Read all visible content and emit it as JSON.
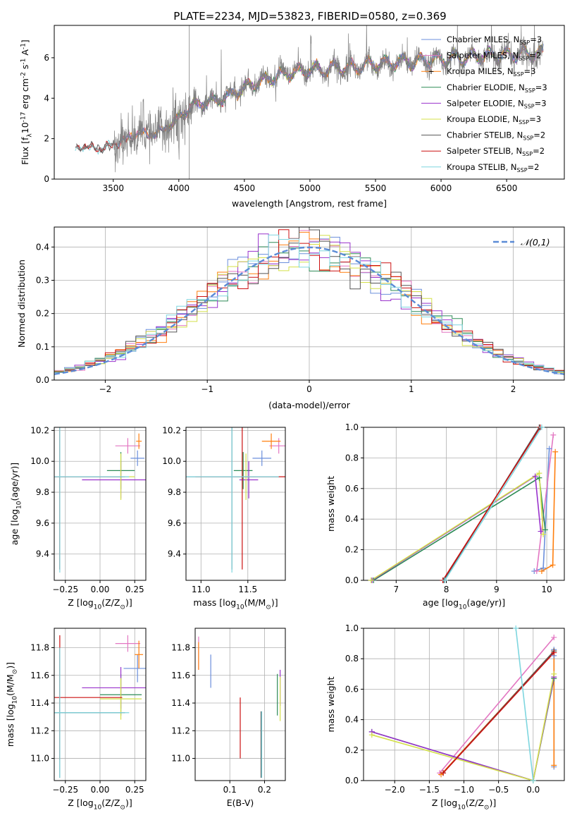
{
  "figure": {
    "title": "PLATE=2234, MJD=53823, FIBERID=0580, z=0.369"
  },
  "colors": {
    "Chabrier MILES": "#6b8fdc",
    "Salpeter MILES": "#e377c2",
    "Kroupa MILES": "#ff7f0e",
    "Chabrier ELODIE": "#2e8b57",
    "Salpeter ELODIE": "#9932cc",
    "Kroupa ELODIE": "#d4e04a",
    "Chabrier STELIB": "#555555",
    "Salpeter STELIB": "#cc1111",
    "Kroupa STELIB": "#7ed6df",
    "data": "#808080",
    "normal": "#5b8bd6"
  },
  "chart_data": [
    {
      "id": "spectrum",
      "type": "line",
      "xlabel": "wavelength [Angstrom, rest frame]",
      "ylabel": "Flux [f$_\\lambda$10$^{-17}$ erg cm$^{-2}$ s$^{-1}$ A$^{-1}$]",
      "xlim": [
        3050,
        6940
      ],
      "ylim": [
        0,
        7.6
      ],
      "xticks": [
        3500,
        4000,
        4500,
        5000,
        5500,
        6000,
        6500
      ],
      "yticks": [
        0,
        2,
        4,
        6
      ],
      "legend_position": "top-right",
      "legend": [
        {
          "label": "Chabrier MILES",
          "nssp": "3"
        },
        {
          "label": "Salpeter MILES",
          "nssp": "2"
        },
        {
          "label": "Kroupa MILES",
          "nssp": "3"
        },
        {
          "label": "Chabrier ELODIE",
          "nssp": "3"
        },
        {
          "label": "Salpeter ELODIE",
          "nssp": "3"
        },
        {
          "label": "Kroupa ELODIE",
          "nssp": "3"
        },
        {
          "label": "Chabrier STELIB",
          "nssp": "2"
        },
        {
          "label": "Salpeter STELIB",
          "nssp": "2"
        },
        {
          "label": "Kroupa STELIB",
          "nssp": "2"
        }
      ],
      "continuum": {
        "x": [
          3210,
          3300,
          3400,
          3500,
          3600,
          3700,
          3800,
          3900,
          4000,
          4100,
          4200,
          4300,
          4400,
          4500,
          4600,
          4700,
          4800,
          4900,
          5000,
          5100,
          5200,
          5300,
          5400,
          5500,
          5600,
          5700,
          5800,
          5900,
          6000,
          6100,
          6200,
          6300,
          6400,
          6500,
          6600,
          6700,
          6780
        ],
        "y": [
          1.5,
          1.6,
          1.5,
          1.7,
          2.0,
          2.3,
          2.2,
          2.5,
          3.0,
          3.6,
          3.8,
          3.9,
          4.2,
          4.5,
          4.8,
          5.0,
          5.2,
          5.3,
          5.4,
          5.4,
          5.5,
          5.5,
          5.6,
          5.7,
          5.7,
          5.8,
          5.8,
          5.9,
          5.9,
          6.0,
          6.0,
          6.1,
          6.1,
          6.1,
          6.2,
          6.2,
          6.2
        ]
      }
    },
    {
      "id": "residuals",
      "type": "line",
      "xlabel": "(data-model)/error",
      "ylabel": "Normed distribution",
      "xlim": [
        -2.5,
        2.5
      ],
      "ylim": [
        0,
        0.46
      ],
      "xticks": [
        -2,
        -1,
        0,
        1,
        2
      ],
      "yticks": [
        0.0,
        0.1,
        0.2,
        0.3,
        0.4
      ],
      "legend": [
        "$\\mathcal{N}(0,1)$"
      ],
      "legend_position": "top-right"
    },
    {
      "id": "age-vs-Z",
      "type": "scatter",
      "xlabel": "Z [log$_{10}$($Z/Z_\\odot$)]",
      "ylabel": "age  [log$_{10}$($age/yr$)]",
      "xlim": [
        -0.33,
        0.33
      ],
      "ylim": [
        9.23,
        10.22
      ],
      "xticks": [
        -0.25,
        0.0,
        0.25
      ],
      "yticks": [
        9.4,
        9.6,
        9.8,
        10.0,
        10.2
      ],
      "points": [
        {
          "series": "Chabrier MILES",
          "x": 0.27,
          "xerr": 0.05,
          "y": 10.02,
          "yerr": 0.05
        },
        {
          "series": "Salpeter MILES",
          "x": 0.2,
          "xerr": 0.09,
          "y": 10.1,
          "yerr": 0.05
        },
        {
          "series": "Kroupa MILES",
          "x": 0.28,
          "xerr": 0.02,
          "y": 10.13,
          "yerr": 0.05
        },
        {
          "series": "Chabrier ELODIE",
          "x": 0.15,
          "xerr": 0.1,
          "y": 9.94,
          "yerr": 0.12
        },
        {
          "series": "Salpeter ELODIE",
          "x": 0.15,
          "xerr": 0.28,
          "y": 9.88,
          "yerr": 0.12
        },
        {
          "series": "Kroupa ELODIE",
          "x": 0.15,
          "xerr": 0.1,
          "y": 9.9,
          "yerr": 0.15
        },
        {
          "series": "Chabrier STELIB",
          "x": -0.29,
          "xerr": 0.47,
          "y": 9.9,
          "yerr": 0.6
        },
        {
          "series": "Salpeter STELIB",
          "x": -0.29,
          "xerr": 0.45,
          "y": 9.9,
          "yerr": 0.6
        },
        {
          "series": "Kroupa STELIB",
          "x": -0.29,
          "xerr": 0.5,
          "y": 9.9,
          "yerr": 0.62
        }
      ]
    },
    {
      "id": "age-vs-mass",
      "type": "scatter",
      "xlabel": "mass [log$_{10}$($M/M_\\odot$)]",
      "ylabel": "",
      "xlim": [
        10.84,
        11.9
      ],
      "ylim": [
        9.23,
        10.22
      ],
      "xticks": [
        11.0,
        11.5
      ],
      "yticks": [
        9.4,
        9.6,
        9.8,
        10.0,
        10.2
      ],
      "points": [
        {
          "series": "Chabrier MILES",
          "x": 11.65,
          "xerr": 0.1,
          "y": 10.02,
          "yerr": 0.05
        },
        {
          "series": "Salpeter MILES",
          "x": 11.83,
          "xerr": 0.1,
          "y": 10.1,
          "yerr": 0.05
        },
        {
          "series": "Kroupa MILES",
          "x": 11.75,
          "xerr": 0.1,
          "y": 10.13,
          "yerr": 0.05
        },
        {
          "series": "Chabrier ELODIE",
          "x": 11.45,
          "xerr": 0.1,
          "y": 9.94,
          "yerr": 0.12
        },
        {
          "series": "Salpeter ELODIE",
          "x": 11.51,
          "xerr": 0.1,
          "y": 9.88,
          "yerr": 0.12
        },
        {
          "series": "Kroupa ELODIE",
          "x": 11.48,
          "xerr": 0.1,
          "y": 9.9,
          "yerr": 0.15
        },
        {
          "series": "Chabrier STELIB",
          "x": 11.33,
          "xerr": 0.5,
          "y": 9.9,
          "yerr": 0.6
        },
        {
          "series": "Salpeter STELIB",
          "x": 11.44,
          "xerr": 0.5,
          "y": 9.9,
          "yerr": 0.6
        },
        {
          "series": "Kroupa STELIB",
          "x": 11.33,
          "xerr": 0.5,
          "y": 9.9,
          "yerr": 0.62
        }
      ]
    },
    {
      "id": "weight-vs-age",
      "type": "line",
      "xlabel": "age  [log$_{10}$($age/yr$)]",
      "ylabel": "mass weight",
      "xlim": [
        6.35,
        10.35
      ],
      "ylim": [
        0,
        1
      ],
      "xticks": [
        7,
        8,
        9,
        10
      ],
      "yticks": [
        0.0,
        0.2,
        0.4,
        0.6,
        0.8,
        1.0
      ],
      "series": [
        {
          "name": "Chabrier MILES",
          "x": [
            9.75,
            9.93,
            10.05
          ],
          "y": [
            0.06,
            0.08,
            0.86
          ]
        },
        {
          "name": "Salpeter MILES",
          "x": [
            9.8,
            10.13
          ],
          "y": [
            0.06,
            0.95
          ]
        },
        {
          "name": "Kroupa MILES",
          "x": [
            9.9,
            10.12,
            10.17
          ],
          "y": [
            0.06,
            0.1,
            0.84
          ]
        },
        {
          "name": "Chabrier ELODIE",
          "x": [
            6.55,
            9.85,
            9.97
          ],
          "y": [
            0.0,
            0.67,
            0.33
          ]
        },
        {
          "name": "Salpeter ELODIE",
          "x": [
            6.52,
            9.77,
            9.88
          ],
          "y": [
            0.0,
            0.68,
            0.32
          ]
        },
        {
          "name": "Kroupa ELODIE",
          "x": [
            6.5,
            9.85,
            9.93
          ],
          "y": [
            0.0,
            0.7,
            0.3
          ]
        },
        {
          "name": "Chabrier STELIB",
          "x": [
            7.95,
            9.85
          ],
          "y": [
            0.0,
            1.0
          ]
        },
        {
          "name": "Salpeter STELIB",
          "x": [
            7.93,
            9.87
          ],
          "y": [
            0.0,
            1.0
          ]
        },
        {
          "name": "Kroupa STELIB",
          "x": [
            7.97,
            9.9
          ],
          "y": [
            0.0,
            1.0
          ]
        }
      ]
    },
    {
      "id": "mass-vs-Z",
      "type": "scatter",
      "xlabel": "Z [log$_{10}$($Z/Z_\\odot$)]",
      "ylabel": "mass [log$_{10}$($M/M_\\odot$)]",
      "xlim": [
        -0.33,
        0.33
      ],
      "ylim": [
        10.84,
        11.94
      ],
      "xticks": [
        -0.25,
        0.0,
        0.25
      ],
      "yticks": [
        11.0,
        11.2,
        11.4,
        11.6,
        11.8
      ],
      "points": [
        {
          "series": "Chabrier MILES",
          "x": 0.27,
          "xerr": 0.1,
          "y": 11.65,
          "yerr": 0.1
        },
        {
          "series": "Salpeter MILES",
          "x": 0.2,
          "xerr": 0.09,
          "y": 11.83,
          "yerr": 0.06
        },
        {
          "series": "Kroupa MILES",
          "x": 0.28,
          "xerr": 0.03,
          "y": 11.75,
          "yerr": 0.1
        },
        {
          "series": "Chabrier ELODIE",
          "x": 0.15,
          "xerr": 0.15,
          "y": 11.46,
          "yerr": 0.15
        },
        {
          "series": "Salpeter ELODIE",
          "x": 0.15,
          "xerr": 0.28,
          "y": 11.51,
          "yerr": 0.15
        },
        {
          "series": "Kroupa ELODIE",
          "x": 0.15,
          "xerr": 0.15,
          "y": 11.43,
          "yerr": 0.15
        },
        {
          "series": "Chabrier STELIB",
          "x": -0.29,
          "xerr": 0.47,
          "y": 11.33,
          "yerr": 0.47
        },
        {
          "series": "Salpeter STELIB",
          "x": -0.29,
          "xerr": 0.45,
          "y": 11.44,
          "yerr": 0.45
        },
        {
          "series": "Kroupa STELIB",
          "x": -0.29,
          "xerr": 0.5,
          "y": 11.33,
          "yerr": 0.47
        }
      ]
    },
    {
      "id": "mass-vs-ebv",
      "type": "scatter",
      "xlabel": "E(B-V)",
      "ylabel": "",
      "xlim": [
        0.0,
        0.26
      ],
      "ylim": [
        10.84,
        11.94
      ],
      "xticks": [
        0.1,
        0.2
      ],
      "yticks": [
        11.0,
        11.2,
        11.4,
        11.6,
        11.8
      ],
      "points": [
        {
          "series": "Chabrier MILES",
          "x": 0.045,
          "y": 11.63,
          "yerr": 0.12
        },
        {
          "series": "Salpeter MILES",
          "x": 0.01,
          "y": 11.76,
          "yerr": 0.12
        },
        {
          "series": "Kroupa MILES",
          "x": 0.01,
          "y": 11.74,
          "yerr": 0.1
        },
        {
          "series": "Chabrier ELODIE",
          "x": 0.237,
          "y": 11.46,
          "yerr": 0.15
        },
        {
          "series": "Salpeter ELODIE",
          "x": 0.245,
          "y": 11.51,
          "yerr": 0.13
        },
        {
          "series": "Kroupa ELODIE",
          "x": 0.245,
          "y": 11.43,
          "yerr": 0.16
        },
        {
          "series": "Chabrier STELIB",
          "x": 0.19,
          "y": 11.1,
          "yerr": 0.24
        },
        {
          "series": "Salpeter STELIB",
          "x": 0.13,
          "y": 11.22,
          "yerr": 0.22
        },
        {
          "series": "Kroupa STELIB",
          "x": 0.192,
          "y": 11.1,
          "yerr": 0.24
        }
      ]
    },
    {
      "id": "weight-vs-Z",
      "type": "line",
      "xlabel": "Z [log$_{10}$($Z/Z_\\odot$)]",
      "ylabel": "mass weight",
      "xlim": [
        -2.45,
        0.45
      ],
      "ylim": [
        0,
        1
      ],
      "xticks": [
        -2.0,
        -1.5,
        -1.0,
        -0.5,
        0.0
      ],
      "yticks": [
        0.0,
        0.2,
        0.4,
        0.6,
        0.8,
        1.0
      ],
      "series": [
        {
          "name": "Chabrier MILES",
          "x": [
            0.3,
            0.3,
            0.3
          ],
          "y": [
            0.09,
            0.82,
            0.86
          ]
        },
        {
          "name": "Salpeter MILES",
          "x": [
            -1.35,
            0.3
          ],
          "y": [
            0.05,
            0.94
          ]
        },
        {
          "name": "Kroupa MILES",
          "x": [
            -1.33,
            0.3,
            0.3
          ],
          "y": [
            0.04,
            0.85,
            0.1
          ]
        },
        {
          "name": "Chabrier ELODIE",
          "x": [
            -2.33,
            0.0,
            0.3
          ],
          "y": [
            0.32,
            0.0,
            0.67
          ]
        },
        {
          "name": "Salpeter ELODIE",
          "x": [
            -2.33,
            0.0,
            0.3
          ],
          "y": [
            0.32,
            0.0,
            0.68
          ]
        },
        {
          "name": "Kroupa ELODIE",
          "x": [
            -2.33,
            0.0,
            0.3
          ],
          "y": [
            0.3,
            0.0,
            0.7
          ]
        },
        {
          "name": "Chabrier STELIB",
          "x": [
            -1.3,
            0.3
          ],
          "y": [
            0.05,
            0.85
          ]
        },
        {
          "name": "Salpeter STELIB",
          "x": [
            -1.3,
            0.3
          ],
          "y": [
            0.05,
            0.84
          ]
        },
        {
          "name": "Kroupa STELIB",
          "x": [
            -0.25,
            0.0
          ],
          "y": [
            1.0,
            0.0
          ]
        }
      ]
    }
  ]
}
